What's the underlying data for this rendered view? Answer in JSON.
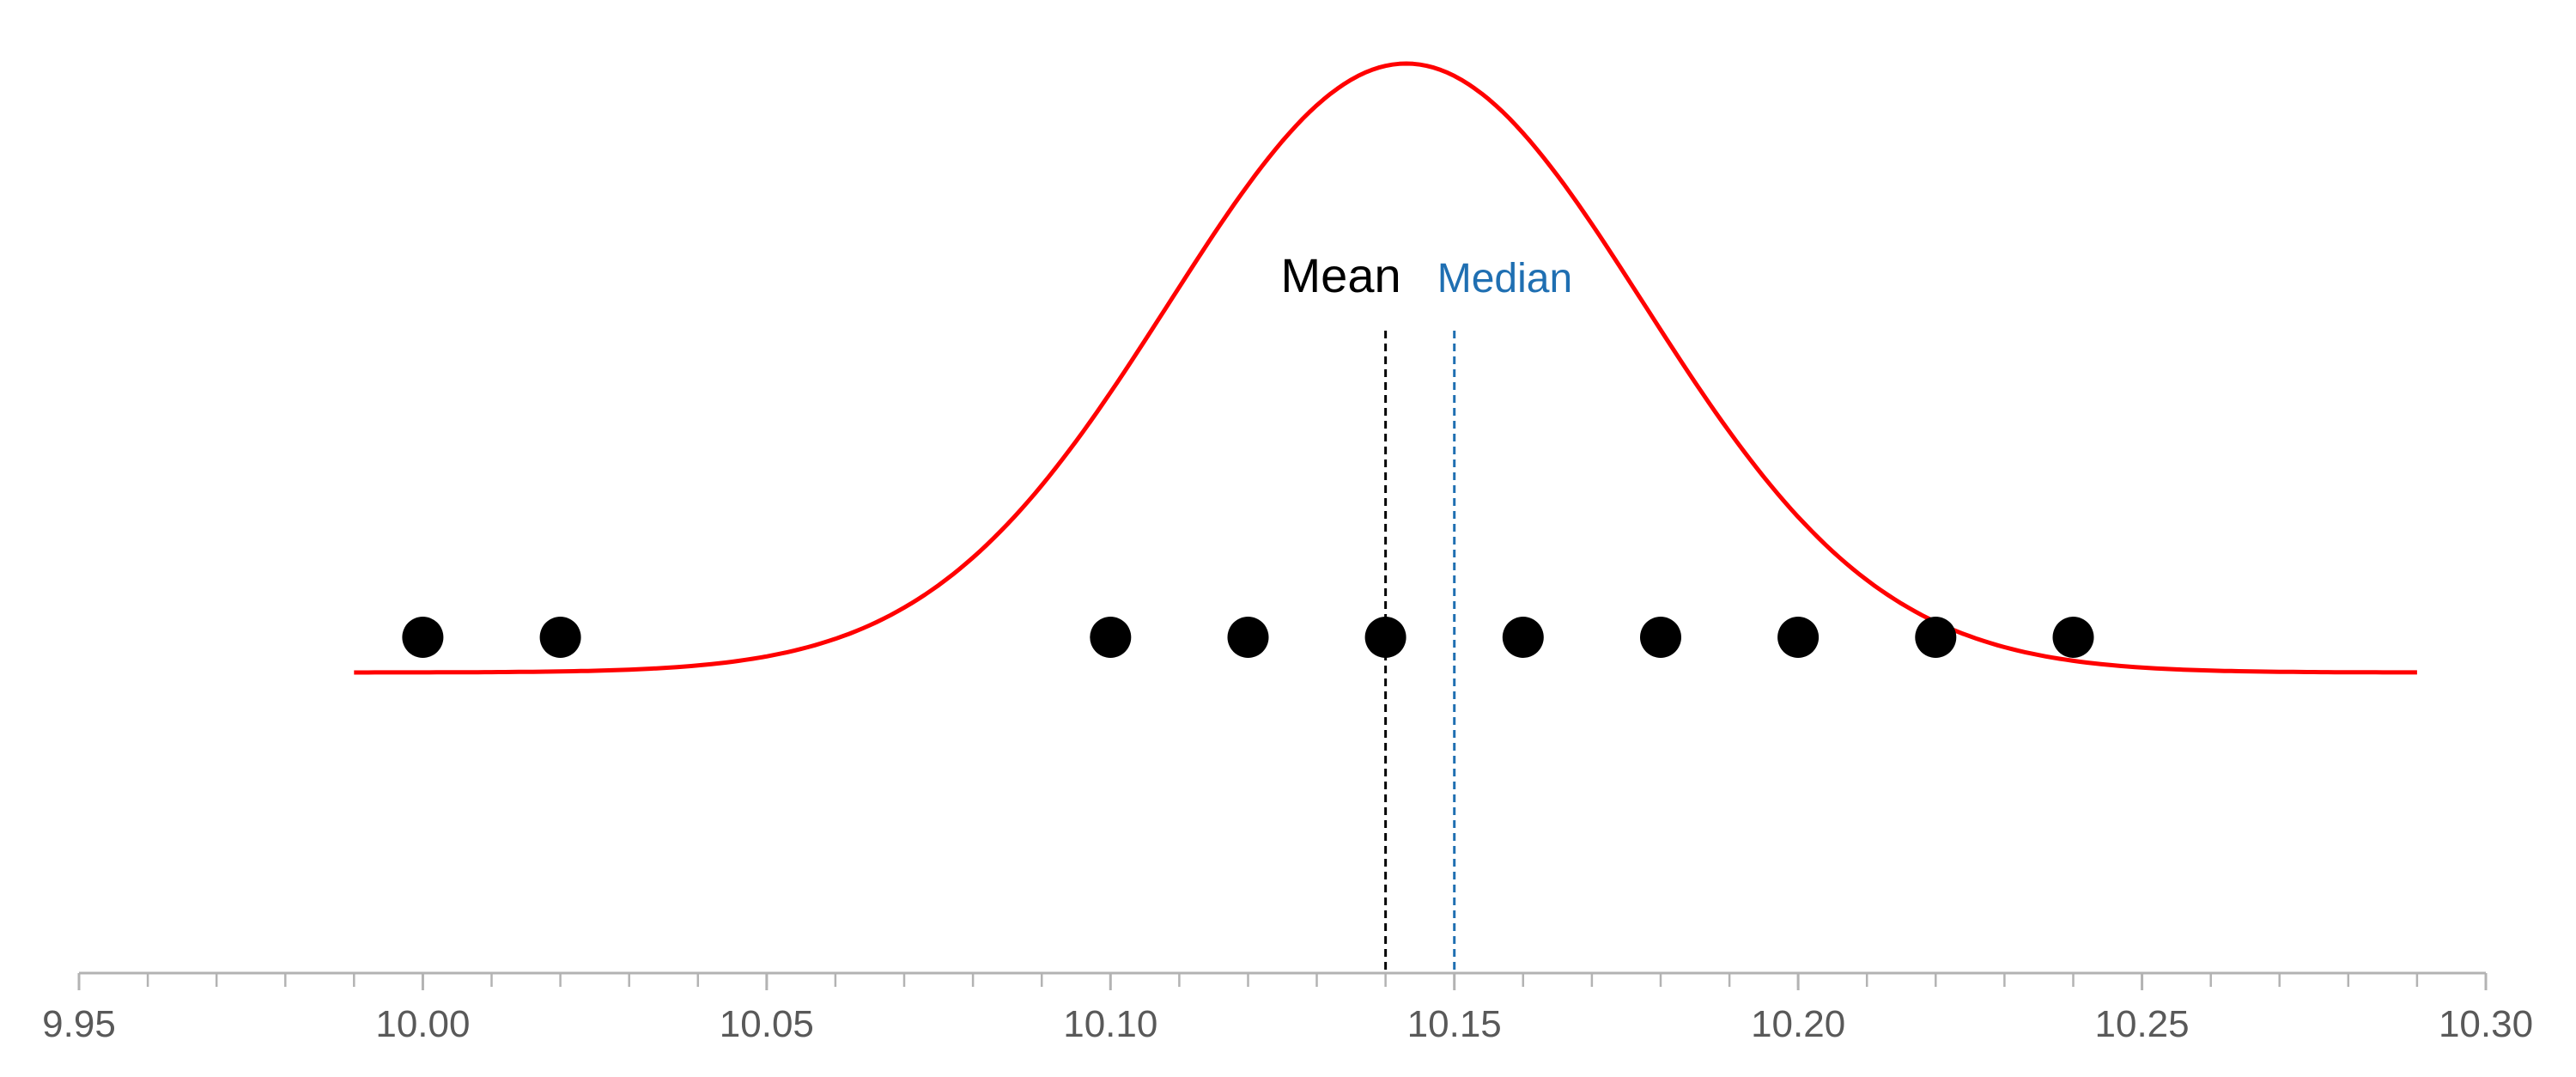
{
  "chart_data": {
    "type": "scatter",
    "title": "",
    "xlabel": "",
    "ylabel": "",
    "xlim": [
      9.95,
      10.3
    ],
    "x_ticks": [
      {
        "value": 9.95,
        "label": "9.95"
      },
      {
        "value": 10.0,
        "label": "10.00"
      },
      {
        "value": 10.05,
        "label": "10.05"
      },
      {
        "value": 10.1,
        "label": "10.10"
      },
      {
        "value": 10.15,
        "label": "10.15"
      },
      {
        "value": 10.2,
        "label": "10.20"
      },
      {
        "value": 10.25,
        "label": "10.25"
      },
      {
        "value": 10.3,
        "label": "10.30"
      }
    ],
    "minor_tick_step": 0.01,
    "grid": false,
    "legend": "none",
    "points": [
      10.0,
      10.02,
      10.1,
      10.12,
      10.14,
      10.16,
      10.18,
      10.2,
      10.22,
      10.24
    ],
    "curve": {
      "type": "normal-density",
      "mean": 10.143,
      "sd": 0.0345,
      "x_range": [
        9.99,
        10.29
      ],
      "color": "#ff0000"
    },
    "reference_lines": [
      {
        "x": 10.14,
        "label": "Mean",
        "color": "#000000",
        "style": "dashed"
      },
      {
        "x": 10.15,
        "label": "Median",
        "color": "#1f6fb2",
        "style": "dashed"
      }
    ],
    "colors": {
      "points": "#000000",
      "axis": "#b3b3b3",
      "tick_labels": "#595959"
    }
  }
}
